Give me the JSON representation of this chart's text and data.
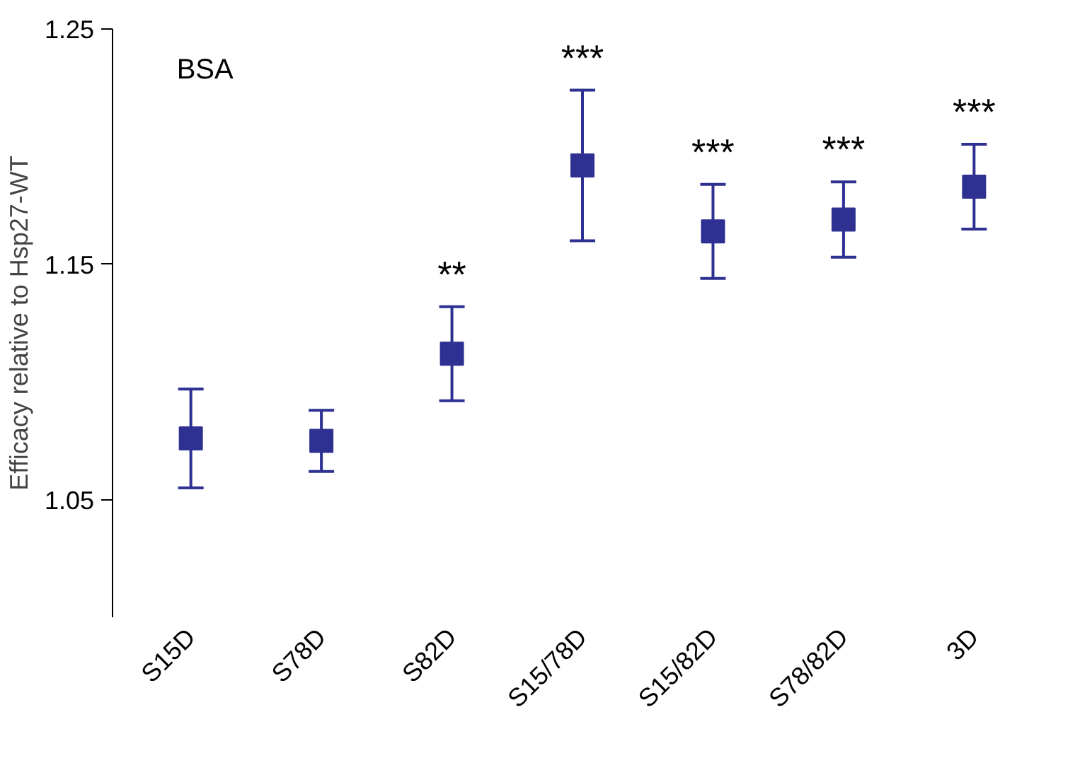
{
  "chart_data": {
    "type": "scatter",
    "ylabel": "Efficacy relative to Hsp27-WT",
    "categories": [
      "S15D",
      "S78D",
      "S82D",
      "S15/78D",
      "S15/82D",
      "S78/82D",
      "3D"
    ],
    "series": [
      {
        "color": "#2e3192",
        "values": [
          1.076,
          1.075,
          1.112,
          1.192,
          1.164,
          1.169,
          1.183
        ],
        "errors": [
          0.021,
          0.013,
          0.02,
          0.032,
          0.02,
          0.016,
          0.018
        ]
      }
    ],
    "marker": "square",
    "ylim": [
      1.0,
      1.25
    ],
    "yticks": [
      1.05,
      1.15,
      1.25
    ],
    "grid": false,
    "annotations": [
      "BSA",
      "**",
      "***",
      "***",
      "***",
      "***"
    ]
  }
}
